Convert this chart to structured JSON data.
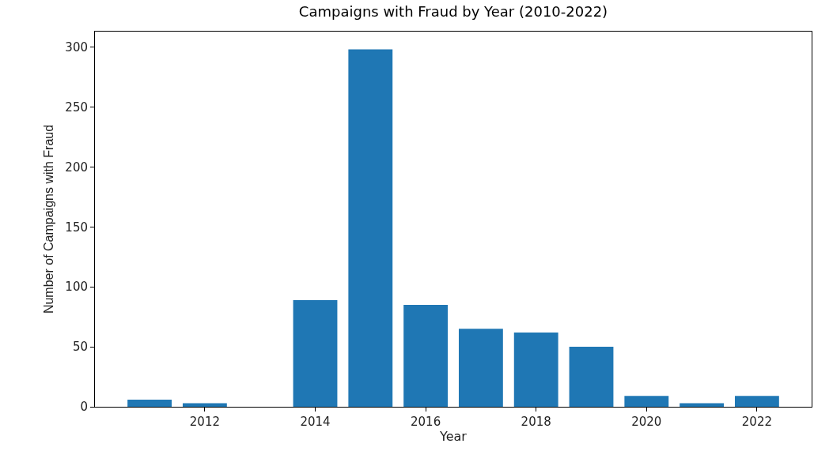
{
  "chart_data": {
    "type": "bar",
    "title": "Campaigns with Fraud by Year (2010-2022)",
    "xlabel": "Year",
    "ylabel": "Number of Campaigns with Fraud",
    "x": [
      2011,
      2012,
      2014,
      2015,
      2016,
      2017,
      2018,
      2019,
      2020,
      2021,
      2022
    ],
    "values": [
      6,
      3,
      89,
      298,
      85,
      65,
      62,
      50,
      9,
      3,
      9
    ],
    "color": "#1f77b4",
    "xlim": [
      2010.01,
      2022.99
    ],
    "xticks": [
      2012,
      2014,
      2016,
      2018,
      2020,
      2022
    ],
    "ylim": [
      0,
      312.9
    ],
    "yticks": [
      0,
      50,
      100,
      150,
      200,
      250,
      300
    ]
  }
}
